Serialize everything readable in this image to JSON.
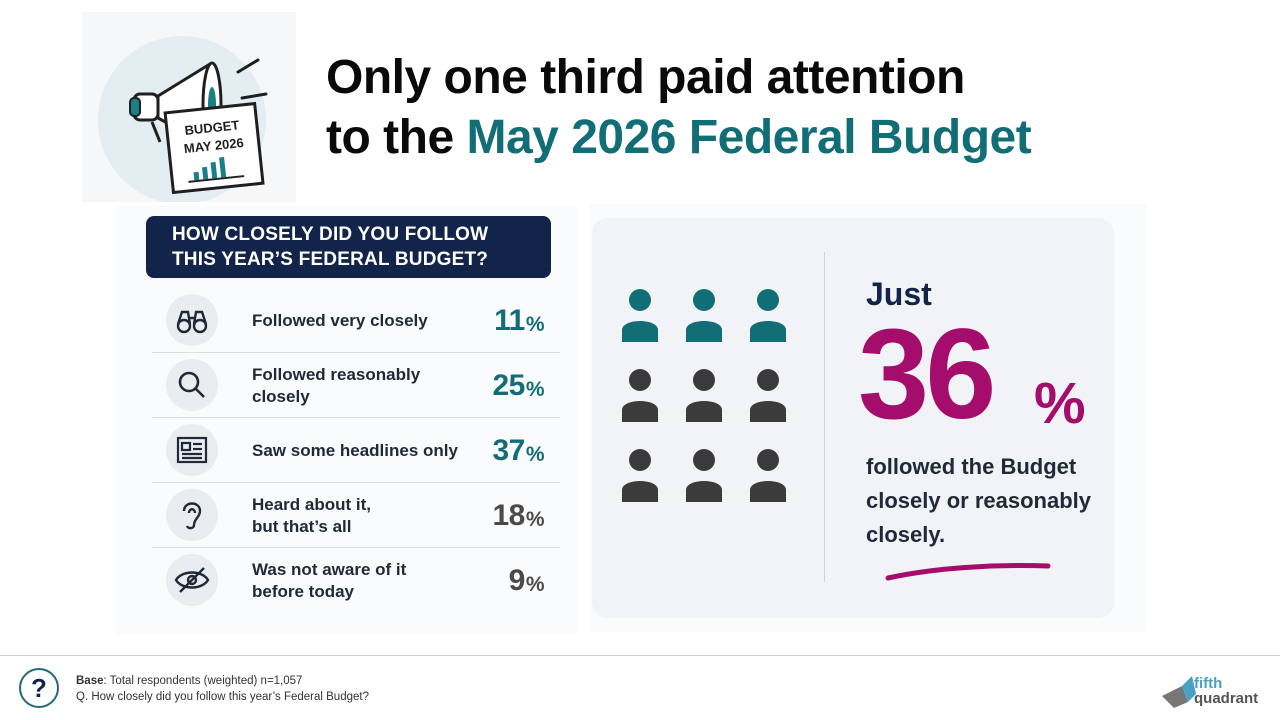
{
  "headline": {
    "line1": "Only one third paid attention",
    "line2_prefix": "to the ",
    "line2_accent": "May 2026 Federal Budget"
  },
  "illustration": {
    "sign_line1": "BUDGET",
    "sign_line2": "MAY 2026",
    "icon": "megaphone-icon"
  },
  "question_header": {
    "line1": "HOW CLOSELY DID YOU FOLLOW",
    "line2": "THIS YEAR’S FEDERAL BUDGET?"
  },
  "rows": [
    {
      "icon": "binoculars-icon",
      "label": "Followed very closely",
      "label2": "",
      "value": "11",
      "sign": "%",
      "color": "#116e76"
    },
    {
      "icon": "magnifier-icon",
      "label": "Followed reasonably closely",
      "label2": "",
      "value": "25",
      "sign": "%",
      "color": "#116e76"
    },
    {
      "icon": "newspaper-icon",
      "label": "Saw some headlines only",
      "label2": "",
      "value": "37",
      "sign": "%",
      "color": "#116e76"
    },
    {
      "icon": "ear-icon",
      "label": "Heard about it,",
      "label2": "but that’s all",
      "value": "18",
      "sign": "%",
      "color": "#4a4a4a"
    },
    {
      "icon": "eye-slash-icon",
      "label": "Was not aware of it",
      "label2": "before today",
      "value": "9",
      "sign": "%",
      "color": "#4a4a4a"
    }
  ],
  "callout": {
    "just": "Just",
    "number": "36",
    "sign": "%",
    "caption": "followed the Budget closely or reasonably closely.",
    "people_highlighted": 3,
    "people_total": 9,
    "highlight_color": "#116e76",
    "base_color": "#3b3b3b",
    "number_color": "#a40d6c"
  },
  "footer": {
    "base_label": "Base",
    "base_text": ": Total respondents (weighted) n=1,057",
    "question": "Q. How closely did you follow this year’s Federal Budget?",
    "help_glyph": "?",
    "logo_line1": "fifth",
    "logo_line2": "quadrant"
  },
  "chart_data": {
    "type": "bar",
    "title": "HOW CLOSELY DID YOU FOLLOW THIS YEAR’S FEDERAL BUDGET?",
    "categories": [
      "Followed very closely",
      "Followed reasonably closely",
      "Saw some headlines only",
      "Heard about it, but that’s all",
      "Was not aware of it before today"
    ],
    "values": [
      11,
      25,
      37,
      18,
      9
    ],
    "unit": "%"
  }
}
